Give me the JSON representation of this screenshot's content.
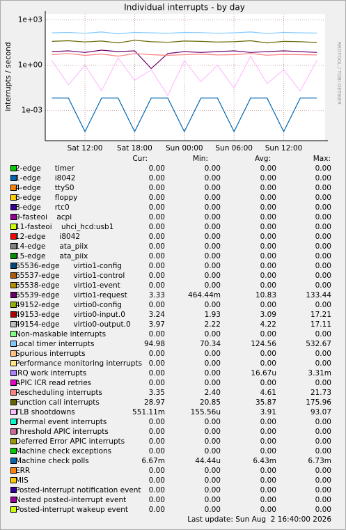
{
  "chart_data": {
    "type": "line",
    "title": "Individual interrupts - by day",
    "y_label": "interrupts / second",
    "side_label": "RRDTOOL / TOBI OETIKER",
    "log_scale": true,
    "grid": true,
    "x": [
      8,
      10,
      12,
      14,
      16,
      18,
      20,
      22,
      24,
      26,
      28,
      30,
      32,
      34,
      36,
      38,
      40
    ],
    "xlim": [
      7.2,
      41
    ],
    "xticks": [
      {
        "value": 12,
        "label": "Sat 12:00"
      },
      {
        "value": 18,
        "label": "Sat 18:00"
      },
      {
        "value": 24,
        "label": "Sun 00:00"
      },
      {
        "value": 30,
        "label": "Sun 06:00"
      },
      {
        "value": 36,
        "label": "Sun 12:00"
      }
    ],
    "ylim": [
      1e-05,
      2500
    ],
    "yticks": [
      {
        "value": 1000,
        "label": "1e+03"
      },
      {
        "value": 1,
        "label": "1e+00"
      },
      {
        "value": 0.001,
        "label": "1e-03"
      }
    ],
    "columns": [
      "Cur:",
      "Min:",
      "Avg:",
      "Max:"
    ],
    "series": [
      {
        "name": "2-edge      timer",
        "color": "#00cc00",
        "stats": [
          "0.00",
          "0.00",
          "0.00",
          "0.00"
        ]
      },
      {
        "name": "1-edge      i8042",
        "color": "#0066b3",
        "stats": [
          "0.00",
          "0.00",
          "0.00",
          "0.00"
        ]
      },
      {
        "name": "4-edge      ttyS0",
        "color": "#ff8000",
        "stats": [
          "0.00",
          "0.00",
          "0.00",
          "0.00"
        ]
      },
      {
        "name": "6-edge      floppy",
        "color": "#ffcc00",
        "stats": [
          "0.00",
          "0.00",
          "0.00",
          "0.00"
        ]
      },
      {
        "name": "8-edge      rtc0",
        "color": "#330099",
        "stats": [
          "0.00",
          "0.00",
          "0.00",
          "0.00"
        ]
      },
      {
        "name": "9-fasteoi    acpi",
        "color": "#990099",
        "stats": [
          "0.00",
          "0.00",
          "0.00",
          "0.00"
        ]
      },
      {
        "name": "11-fasteoi    uhci_hcd:usb1",
        "color": "#ccff00",
        "stats": [
          "0.00",
          "0.00",
          "0.00",
          "0.00"
        ]
      },
      {
        "name": "12-edge      i8042",
        "color": "#ff0000",
        "stats": [
          "0.00",
          "0.00",
          "0.00",
          "0.00"
        ]
      },
      {
        "name": "14-edge      ata_piix",
        "color": "#808080",
        "stats": [
          "0.00",
          "0.00",
          "0.00",
          "0.00"
        ]
      },
      {
        "name": "15-edge      ata_piix",
        "color": "#008f00",
        "stats": [
          "0.00",
          "0.00",
          "0.00",
          "0.00"
        ]
      },
      {
        "name": "65536-edge      virtio1-config",
        "color": "#00487d",
        "stats": [
          "0.00",
          "0.00",
          "0.00",
          "0.00"
        ]
      },
      {
        "name": "65537-edge      virtio1-control",
        "color": "#b35a00",
        "stats": [
          "0.00",
          "0.00",
          "0.00",
          "0.00"
        ]
      },
      {
        "name": "65538-edge      virtio1-event",
        "color": "#b38f00",
        "stats": [
          "0.00",
          "0.00",
          "0.00",
          "0.00"
        ]
      },
      {
        "name": "65539-edge      virtio1-request",
        "color": "#6b006b",
        "stats": [
          "3.33",
          "464.44m",
          "10.83",
          "133.44"
        ],
        "values": [
          8,
          9,
          7,
          10,
          8,
          9,
          0.6,
          6,
          8,
          7,
          8,
          9,
          7,
          8,
          9,
          8,
          7
        ]
      },
      {
        "name": "49152-edge      virtio0-config",
        "color": "#8fb300",
        "stats": [
          "0.00",
          "0.00",
          "0.00",
          "0.00"
        ]
      },
      {
        "name": "49153-edge      virtio0-input.0",
        "color": "#b30000",
        "stats": [
          "3.24",
          "1.93",
          "3.09",
          "17.21"
        ]
      },
      {
        "name": "49154-edge      virtio0-output.0",
        "color": "#bebebe",
        "stats": [
          "3.97",
          "2.22",
          "4.22",
          "17.11"
        ]
      },
      {
        "name": "Non-maskable interrupts",
        "color": "#80ff80",
        "stats": [
          "0.00",
          "0.00",
          "0.00",
          "0.00"
        ]
      },
      {
        "name": "Local timer interrupts",
        "color": "#80c9ff",
        "stats": [
          "94.98",
          "70.34",
          "124.56",
          "532.67"
        ],
        "values": [
          140,
          150,
          130,
          160,
          120,
          150,
          140,
          130,
          150,
          145,
          130,
          140,
          160,
          125,
          150,
          140,
          135
        ]
      },
      {
        "name": "Spurious interrupts",
        "color": "#ffc080",
        "stats": [
          "0.00",
          "0.00",
          "0.00",
          "0.00"
        ]
      },
      {
        "name": "Performance monitoring interrupts",
        "color": "#ffe680",
        "stats": [
          "0.00",
          "0.00",
          "0.00",
          "0.00"
        ]
      },
      {
        "name": "IRQ work interrupts",
        "color": "#aa80ff",
        "stats": [
          "0.00",
          "0.00",
          "16.67u",
          "3.31m"
        ]
      },
      {
        "name": "APIC ICR read retries",
        "color": "#ee00cc",
        "stats": [
          "0.00",
          "0.00",
          "0.00",
          "0.00"
        ]
      },
      {
        "name": "Rescheduling interrupts",
        "color": "#ff8080",
        "stats": [
          "3.35",
          "2.40",
          "4.61",
          "21.73"
        ],
        "values": [
          5,
          6,
          4.5,
          5.5,
          4,
          6,
          5,
          4.5,
          5,
          5.5,
          4.8,
          5,
          6,
          4.6,
          5.2,
          5,
          4.8
        ]
      },
      {
        "name": "Function call interrupts",
        "color": "#666600",
        "stats": [
          "28.97",
          "20.85",
          "35.87",
          "175.96"
        ],
        "values": [
          38,
          42,
          35,
          40,
          30,
          45,
          36,
          33,
          40,
          38,
          34,
          36,
          42,
          30,
          38,
          36,
          32
        ]
      },
      {
        "name": "TLB shootdowns",
        "color": "#ffbfff",
        "stats": [
          "551.11m",
          "155.56u",
          "3.91",
          "93.07"
        ],
        "values": [
          2,
          0.05,
          1,
          0.02,
          3,
          0.1,
          0.5,
          0.01,
          2,
          0.08,
          1,
          0.03,
          4,
          0.06,
          0.5,
          0.02,
          2
        ]
      },
      {
        "name": "Thermal event interrupts",
        "color": "#00ffcc",
        "stats": [
          "0.00",
          "0.00",
          "0.00",
          "0.00"
        ]
      },
      {
        "name": "Threshold APIC interrupts",
        "color": "#cc6699",
        "stats": [
          "0.00",
          "0.00",
          "0.00",
          "0.00"
        ]
      },
      {
        "name": "Deferred Error APIC interrupts",
        "color": "#999900",
        "stats": [
          "0.00",
          "0.00",
          "0.00",
          "0.00"
        ]
      },
      {
        "name": "Machine check exceptions",
        "color": "#00cc00",
        "stats": [
          "0.00",
          "0.00",
          "0.00",
          "0.00"
        ]
      },
      {
        "name": "Machine check polls",
        "color": "#0066b3",
        "stats": [
          "6.67m",
          "44.44u",
          "6.43m",
          "6.73m"
        ],
        "values": [
          0.0067,
          0.0067,
          4e-05,
          0.0067,
          0.0067,
          4e-05,
          0.0067,
          0.0067,
          4e-05,
          0.0067,
          0.0067,
          4e-05,
          0.0067,
          0.0067,
          4e-05,
          0.0067,
          0.0067
        ]
      },
      {
        "name": "ERR",
        "color": "#ff8000",
        "stats": [
          "0.00",
          "0.00",
          "0.00",
          "0.00"
        ]
      },
      {
        "name": "MIS",
        "color": "#ffcc00",
        "stats": [
          "0.00",
          "0.00",
          "0.00",
          "0.00"
        ]
      },
      {
        "name": "Posted-interrupt notification event",
        "color": "#330099",
        "stats": [
          "0.00",
          "0.00",
          "0.00",
          "0.00"
        ]
      },
      {
        "name": "Nested posted-interrupt event",
        "color": "#990099",
        "stats": [
          "0.00",
          "0.00",
          "0.00",
          "0.00"
        ]
      },
      {
        "name": "Posted-interrupt wakeup event",
        "color": "#ccff00",
        "stats": [
          "0.00",
          "0.00",
          "0.00",
          "0.00"
        ]
      }
    ],
    "last_update": "Last update: Sun Aug  2 16:40:00 2026"
  }
}
